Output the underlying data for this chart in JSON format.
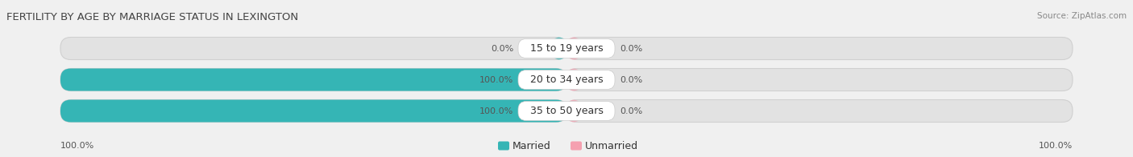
{
  "title": "FERTILITY BY AGE BY MARRIAGE STATUS IN LEXINGTON",
  "source": "Source: ZipAtlas.com",
  "categories": [
    "15 to 19 years",
    "20 to 34 years",
    "35 to 50 years"
  ],
  "married_values": [
    0.0,
    100.0,
    100.0
  ],
  "unmarried_values": [
    0.0,
    0.0,
    0.0
  ],
  "married_color": "#35b5b5",
  "unmarried_color": "#f5a0b0",
  "bar_bg_color": "#e2e2e2",
  "bar_border_color": "#cccccc",
  "x_left_label": "100.0%",
  "x_right_label": "100.0%",
  "title_fontsize": 9.5,
  "source_fontsize": 7.5,
  "label_fontsize": 8,
  "cat_label_fontsize": 9,
  "legend_fontsize": 9,
  "background_color": "#f0f0f0",
  "stub_size": 4.0,
  "white_label_bg": "#ffffff"
}
